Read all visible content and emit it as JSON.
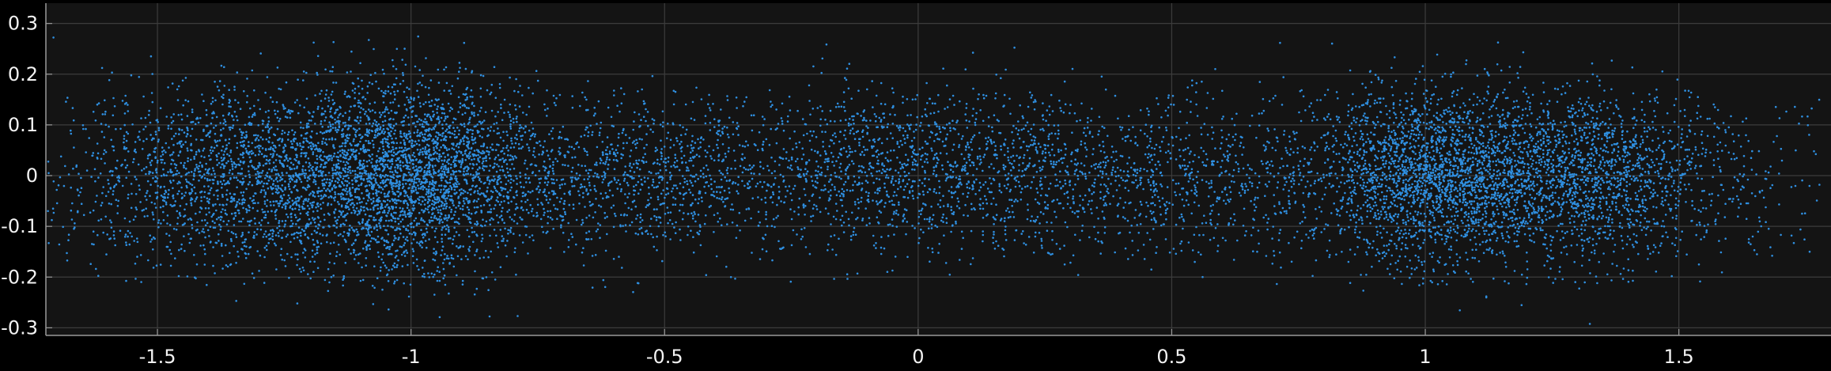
{
  "chart_data": {
    "type": "scatter",
    "title": "",
    "xlabel": "",
    "ylabel": "",
    "xlim": [
      -1.72,
      1.8
    ],
    "ylim": [
      -0.315,
      0.34
    ],
    "grid": true,
    "legend": "none",
    "colors": {
      "figure_background": "#000000",
      "axes_background": "#141414",
      "grid": "#3c3c3c",
      "axis_line": "#9a9a9a",
      "tick_label": "#f2f2f2",
      "marker": "#2f8fe0"
    },
    "x_ticks": [
      -1.5,
      -1,
      -0.5,
      0,
      0.5,
      1,
      1.5
    ],
    "x_tick_labels": [
      "-1.5",
      "-1",
      "-0.5",
      "0",
      "0.5",
      "1",
      "1.5"
    ],
    "y_ticks": [
      0.3,
      0.2,
      0.1,
      0,
      -0.1,
      -0.2,
      -0.3
    ],
    "y_tick_labels": [
      "0.3",
      "0.2",
      "0.1",
      "0",
      "-0.1",
      "-0.2",
      "-0.3"
    ],
    "series": [
      {
        "marker": "dot",
        "color": "#2f8fe0",
        "density_model": {
          "description": "dense point cloud; clusters at listed x positions with given spread in data units",
          "clusters": [
            {
              "x": -1.32,
              "y": 0.0,
              "sx": 0.17,
              "sy": 0.085,
              "count": 1800
            },
            {
              "x": -1.0,
              "y": 0.0,
              "sx": 0.13,
              "sy": 0.09,
              "count": 2600
            },
            {
              "x": -0.55,
              "y": 0.0,
              "sx": 0.22,
              "sy": 0.075,
              "count": 1100
            },
            {
              "x": 0.0,
              "y": 0.02,
              "sx": 0.17,
              "sy": 0.075,
              "count": 1000
            },
            {
              "x": 0.48,
              "y": 0.0,
              "sx": 0.22,
              "sy": 0.075,
              "count": 900
            },
            {
              "x": 1.0,
              "y": 0.0,
              "sx": 0.11,
              "sy": 0.085,
              "count": 1900
            },
            {
              "x": 1.3,
              "y": 0.0,
              "sx": 0.15,
              "sy": 0.08,
              "count": 1900
            }
          ],
          "uniform_background": {
            "xmin": -1.7,
            "xmax": 1.78,
            "ymin": -0.16,
            "ymax": 0.16,
            "count": 1000
          },
          "seed": 12345
        }
      }
    ]
  }
}
